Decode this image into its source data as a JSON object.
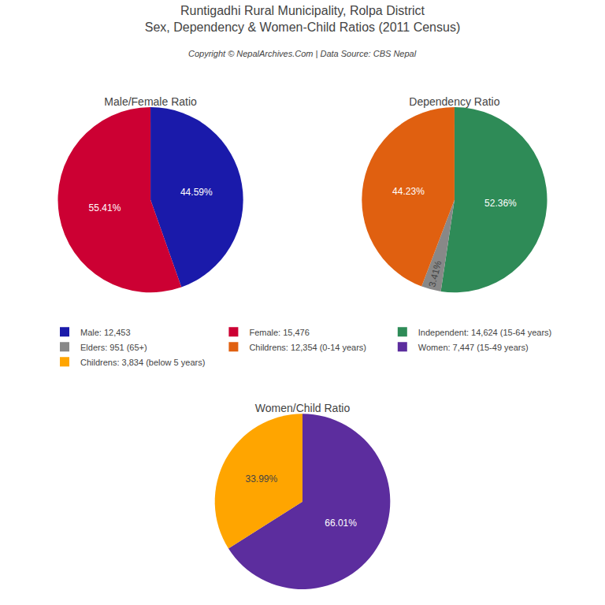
{
  "title": "Runtigadhi Rural Municipality, Rolpa District",
  "subtitle": "Sex, Dependency & Women-Child Ratios (2011 Census)",
  "annotations": [
    "Copyright © NepalArchives.Com | Data Source: CBS Nepal"
  ],
  "chart_data": [
    {
      "type": "pie",
      "title": "Male/Female Ratio",
      "categories": [
        "Male: 12,453",
        "Female: 15,476"
      ],
      "values": [
        44.59,
        55.41
      ],
      "value_labels": [
        "44.59%",
        "55.41%"
      ],
      "colors": [
        "#1a1aaa",
        "#cc0033"
      ],
      "data_labels": true
    },
    {
      "type": "pie",
      "title": "Dependency Ratio",
      "categories": [
        "Independent: 14,624 (15-64 years)",
        "Elders: 951 (65+)",
        "Childrens: 12,354 (0-14 years)"
      ],
      "values": [
        52.36,
        3.41,
        44.23
      ],
      "value_labels": [
        "52.36%",
        "3.41%",
        "44.23%"
      ],
      "colors": [
        "#2e8b57",
        "#888888",
        "#e06010"
      ],
      "data_labels": true
    },
    {
      "type": "pie",
      "title": "Women/Child Ratio",
      "categories": [
        "Women: 7,447 (15-49 years)",
        "Childrens: 3,834 (below 5 years)"
      ],
      "values": [
        66.01,
        33.99
      ],
      "value_labels": [
        "66.01%",
        "33.99%"
      ],
      "colors": [
        "#5c2d9e",
        "#ffa500"
      ],
      "data_labels": true
    }
  ]
}
